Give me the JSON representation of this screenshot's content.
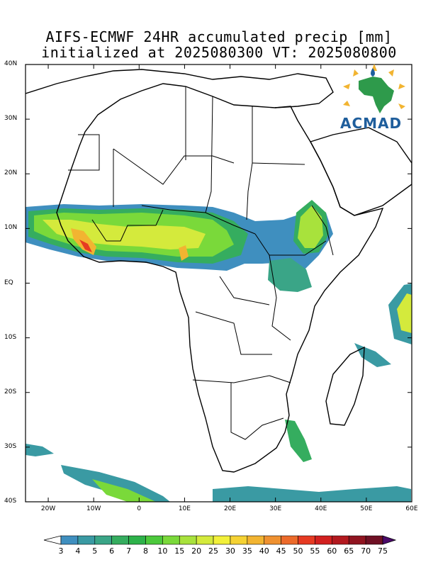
{
  "title": {
    "line1": "AIFS-ECMWF 24HR accumulated precip [mm]",
    "line2": "initialized at 2025080300 VT: 2025080800"
  },
  "logo": {
    "text": "ACMAD",
    "icon": "africa-map-logo-icon"
  },
  "map": {
    "projection": "lat-lon",
    "lon_range": [
      -25,
      60
    ],
    "lat_range": [
      -40,
      40
    ],
    "lat_labels": [
      "40N",
      "30N",
      "20N",
      "10N",
      "EQ",
      "10S",
      "20S",
      "30S",
      "40S"
    ],
    "lon_labels": [
      "20W",
      "10W",
      "0",
      "10E",
      "20E",
      "30E",
      "40E",
      "50E",
      "60E"
    ]
  },
  "colorbar": {
    "levels": [
      "3",
      "4",
      "5",
      "6",
      "7",
      "8",
      "10",
      "15",
      "20",
      "25",
      "30",
      "35",
      "40",
      "45",
      "50",
      "55",
      "60",
      "65",
      "70",
      "75"
    ],
    "colors": [
      "#3f8fbf",
      "#3a9aa3",
      "#3aa587",
      "#35ad5f",
      "#2db24a",
      "#4cc93c",
      "#7ad93a",
      "#a8e23c",
      "#d4ea3c",
      "#f2f03a",
      "#f5d233",
      "#f2b431",
      "#ef9130",
      "#ec6a2a",
      "#e63a22",
      "#d2201f",
      "#b3191f",
      "#901420",
      "#6f1024",
      "#4b0a6a"
    ]
  }
}
